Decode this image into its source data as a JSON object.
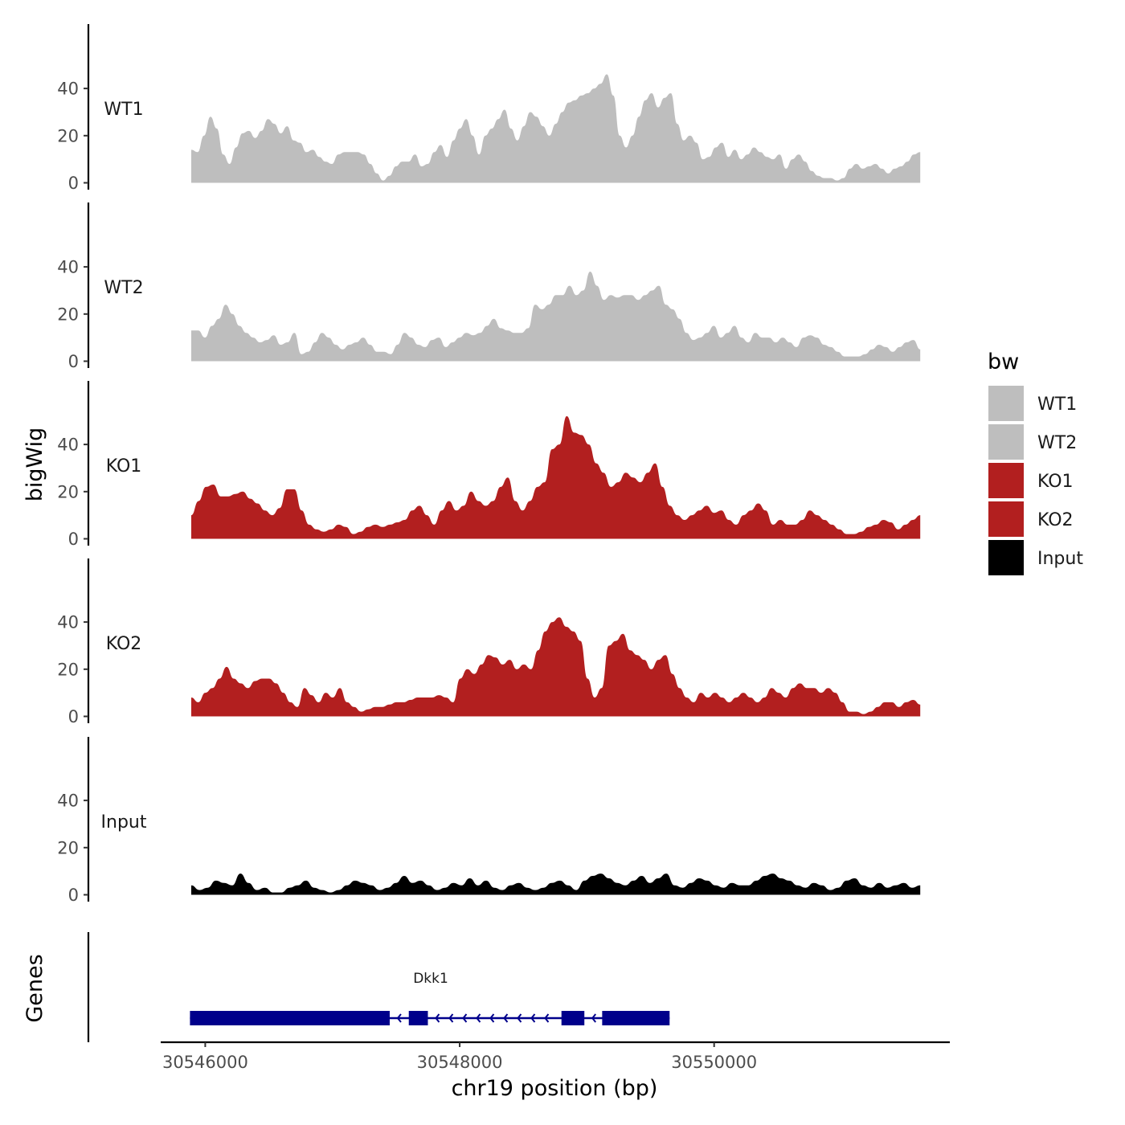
{
  "chart_data": {
    "type": "area",
    "ylabel": "bigWig",
    "xlabel": "chr19 position (bp)",
    "ylim": [
      0,
      55
    ],
    "y_ticks": [
      0,
      20,
      40
    ],
    "x_range": [
      30545650,
      30551840
    ],
    "x_ticks": [
      {
        "value": 30546000,
        "label": "30546000"
      },
      {
        "value": 30548000,
        "label": "30548000"
      },
      {
        "value": 30550000,
        "label": "30550000"
      }
    ],
    "data_x_start": 30545890,
    "data_x_end": 30551620,
    "legend": {
      "title": "bw",
      "position": "right",
      "entries": [
        {
          "label": "WT1",
          "color": "#bebebe"
        },
        {
          "label": "WT2",
          "color": "#bebebe"
        },
        {
          "label": "KO1",
          "color": "#b21f1f"
        },
        {
          "label": "KO2",
          "color": "#b21f1f"
        },
        {
          "label": "Input",
          "color": "#000000"
        }
      ]
    },
    "series": [
      {
        "name": "WT1",
        "color": "#bebebe",
        "values": [
          14,
          13,
          20,
          28,
          23,
          12,
          8,
          15,
          21,
          22,
          19,
          22,
          27,
          25,
          21,
          24,
          18,
          17,
          13,
          14,
          11,
          9,
          8,
          12,
          13,
          13,
          13,
          12,
          8,
          4,
          1,
          3,
          7,
          9,
          9,
          12,
          7,
          8,
          13,
          16,
          11,
          18,
          23,
          27,
          20,
          12,
          20,
          23,
          27,
          31,
          23,
          18,
          24,
          30,
          28,
          24,
          20,
          25,
          30,
          34,
          35,
          37,
          38,
          40,
          42,
          46,
          37,
          20,
          15,
          20,
          28,
          35,
          38,
          32,
          36,
          38,
          25,
          18,
          20,
          17,
          10,
          11,
          15,
          17,
          11,
          14,
          10,
          12,
          15,
          13,
          11,
          10,
          12,
          6,
          10,
          12,
          9,
          5,
          3,
          2,
          2,
          1,
          2,
          6,
          8,
          6,
          7,
          8,
          6,
          4,
          6,
          7,
          9,
          12,
          13
        ]
      },
      {
        "name": "WT2",
        "color": "#bebebe",
        "values": [
          13,
          13,
          10,
          15,
          18,
          24,
          20,
          15,
          12,
          10,
          8,
          9,
          11,
          7,
          8,
          12,
          3,
          4,
          8,
          12,
          10,
          7,
          5,
          7,
          8,
          10,
          7,
          4,
          4,
          3,
          7,
          12,
          10,
          7,
          6,
          9,
          10,
          6,
          8,
          10,
          12,
          11,
          12,
          15,
          18,
          14,
          13,
          12,
          12,
          14,
          24,
          22,
          24,
          28,
          28,
          32,
          28,
          30,
          38,
          32,
          26,
          28,
          27,
          28,
          28,
          26,
          28,
          30,
          32,
          24,
          22,
          18,
          12,
          9,
          10,
          12,
          15,
          10,
          12,
          15,
          10,
          8,
          12,
          10,
          10,
          8,
          10,
          8,
          6,
          10,
          11,
          10,
          7,
          6,
          4,
          2,
          2,
          2,
          3,
          5,
          7,
          6,
          4,
          6,
          8,
          9,
          5
        ]
      },
      {
        "name": "KO1",
        "color": "#b21f1f",
        "values": [
          10,
          16,
          22,
          23,
          18,
          18,
          19,
          20,
          17,
          15,
          12,
          10,
          13,
          21,
          21,
          12,
          6,
          4,
          3,
          4,
          6,
          5,
          2,
          3,
          5,
          6,
          5,
          6,
          7,
          8,
          12,
          14,
          10,
          6,
          12,
          16,
          12,
          14,
          20,
          16,
          14,
          16,
          22,
          26,
          16,
          12,
          16,
          22,
          24,
          38,
          40,
          52,
          45,
          44,
          40,
          32,
          28,
          22,
          24,
          28,
          26,
          24,
          28,
          32,
          22,
          14,
          10,
          8,
          10,
          12,
          14,
          11,
          12,
          8,
          6,
          10,
          12,
          15,
          12,
          6,
          8,
          6,
          6,
          8,
          12,
          10,
          8,
          6,
          4,
          2,
          2,
          3,
          5,
          6,
          8,
          7,
          4,
          6,
          8,
          10
        ]
      },
      {
        "name": "KO2",
        "color": "#b21f1f",
        "values": [
          8,
          6,
          10,
          12,
          16,
          21,
          16,
          14,
          12,
          15,
          16,
          16,
          14,
          10,
          6,
          4,
          12,
          9,
          6,
          10,
          8,
          12,
          6,
          4,
          2,
          3,
          4,
          4,
          5,
          6,
          6,
          7,
          8,
          8,
          8,
          9,
          8,
          6,
          16,
          20,
          18,
          22,
          26,
          25,
          22,
          24,
          20,
          22,
          20,
          28,
          36,
          40,
          42,
          38,
          36,
          32,
          16,
          8,
          12,
          30,
          32,
          35,
          28,
          26,
          24,
          20,
          24,
          26,
          18,
          12,
          8,
          6,
          10,
          8,
          10,
          8,
          6,
          8,
          10,
          8,
          6,
          8,
          12,
          10,
          8,
          12,
          14,
          12,
          12,
          10,
          12,
          10,
          6,
          2,
          2,
          1,
          2,
          4,
          6,
          6,
          4,
          6,
          7,
          5
        ]
      },
      {
        "name": "Input",
        "color": "#000000",
        "values": [
          4,
          2,
          3,
          6,
          5,
          4,
          9,
          5,
          2,
          3,
          1,
          1,
          3,
          4,
          6,
          3,
          2,
          1,
          2,
          4,
          6,
          5,
          4,
          2,
          3,
          5,
          8,
          5,
          6,
          4,
          2,
          3,
          5,
          4,
          7,
          4,
          6,
          3,
          2,
          4,
          5,
          3,
          2,
          3,
          5,
          6,
          4,
          2,
          6,
          8,
          9,
          7,
          5,
          4,
          6,
          8,
          5,
          7,
          9,
          4,
          3,
          5,
          7,
          6,
          4,
          3,
          5,
          4,
          4,
          6,
          8,
          9,
          7,
          6,
          4,
          3,
          5,
          4,
          2,
          3,
          6,
          7,
          4,
          3,
          5,
          3,
          4,
          5,
          3,
          4
        ]
      }
    ],
    "genes": {
      "track_label": "Genes",
      "name": "Dkk1",
      "strand": "-",
      "start": 30545880,
      "end": 30549650,
      "color": "#00008b",
      "exons": [
        [
          30545880,
          30547450
        ],
        [
          30547600,
          30547750
        ],
        [
          30548800,
          30548980
        ],
        [
          30549120,
          30549650
        ]
      ]
    }
  }
}
